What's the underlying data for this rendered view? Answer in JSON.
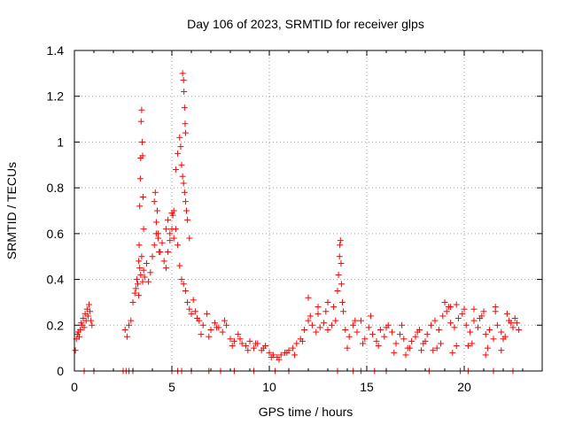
{
  "chart_data": {
    "type": "scatter",
    "title": "Day 106 of 2023, SRMTID for receiver glps",
    "xlabel": "GPS time / hours",
    "ylabel": "SRMTID / TECUs",
    "xlim": [
      0,
      24
    ],
    "ylim": [
      0,
      1.4
    ],
    "xticks": [
      0,
      5,
      10,
      15,
      20
    ],
    "xtick_labels": [
      "0",
      "5",
      "10",
      "15",
      "20"
    ],
    "yticks": [
      0,
      0.2,
      0.4,
      0.6,
      0.8,
      1.0,
      1.2,
      1.4
    ],
    "ytick_labels": [
      "0",
      "0.2",
      "0.4",
      "0.6",
      "0.8",
      "1",
      "1.2",
      "1.4"
    ],
    "grid": true,
    "marker": "+",
    "series": [
      {
        "name": "SRMTID",
        "color": "#ff0000",
        "x": [
          0.05,
          0.1,
          0.15,
          0.2,
          0.25,
          0.3,
          0.35,
          0.4,
          0.45,
          0.5,
          0.55,
          0.6,
          0.65,
          0.7,
          0.75,
          0.8,
          0.85,
          0.9,
          0.5,
          1.0,
          2.5,
          2.65,
          2.8,
          3.0,
          5.0,
          5.3,
          5.5,
          6.0,
          6.9,
          7.5,
          8.2,
          9.2,
          10.3,
          11.0,
          13.5,
          14.3,
          14.7,
          15.4,
          16.0,
          18.2,
          19.8,
          20.2,
          21.5,
          22.5,
          2.6,
          2.7,
          2.8,
          2.9,
          3.0,
          3.1,
          3.15,
          3.2,
          3.25,
          3.3,
          3.35,
          3.4,
          3.45,
          3.5,
          3.55,
          3.6,
          3.7,
          3.8,
          3.9,
          4.0,
          4.1,
          4.2,
          4.3,
          4.4,
          4.5,
          4.6,
          4.7,
          4.8,
          4.9,
          5.0,
          5.1,
          5.2,
          5.3,
          5.4,
          5.5,
          5.6,
          5.7,
          5.8,
          5.9,
          6.0,
          6.1,
          6.2,
          6.3,
          3.3,
          3.32,
          3.35,
          3.38,
          3.4,
          3.42,
          3.45,
          3.48,
          3.5,
          3.52,
          3.55,
          4.1,
          4.15,
          4.2,
          4.25,
          4.3,
          4.35,
          5.2,
          5.3,
          5.4,
          5.45,
          5.5,
          5.55,
          5.6,
          5.65,
          5.7,
          5.75,
          5.8,
          5.9,
          5.55,
          5.6,
          5.62,
          5.65,
          5.68,
          5.7,
          4.7,
          4.8,
          4.9,
          5.0,
          5.05,
          5.1,
          6.4,
          6.6,
          6.8,
          7.0,
          7.2,
          7.4,
          7.6,
          7.8,
          8.0,
          8.2,
          8.4,
          8.6,
          8.8,
          9.0,
          9.2,
          9.4,
          9.6,
          9.8,
          10.0,
          10.2,
          10.4,
          10.6,
          10.8,
          11.0,
          11.2,
          11.4,
          11.6,
          11.8,
          12.0,
          12.2,
          12.4,
          12.6,
          12.8,
          13.0,
          13.2,
          13.4,
          6.5,
          6.9,
          7.3,
          7.7,
          8.1,
          8.5,
          8.9,
          9.3,
          9.7,
          10.1,
          10.5,
          10.9,
          11.3,
          11.7,
          12.1,
          12.5,
          12.9,
          13.3,
          13.5,
          13.55,
          13.6,
          13.62,
          13.65,
          13.68,
          13.7,
          13.75,
          13.8,
          13.9,
          14.1,
          14.3,
          14.5,
          14.7,
          14.9,
          15.1,
          15.3,
          15.5,
          15.7,
          15.9,
          16.1,
          16.3,
          16.5,
          16.7,
          16.9,
          17.1,
          17.3,
          17.5,
          17.7,
          17.9,
          18.1,
          18.3,
          18.5,
          18.7,
          18.9,
          19.1,
          19.3,
          19.5,
          19.7,
          19.9,
          20.1,
          20.3,
          20.5,
          20.7,
          20.9,
          21.1,
          21.3,
          21.5,
          21.7,
          21.9,
          22.1,
          22.3,
          22.5,
          22.7,
          14.0,
          14.4,
          14.8,
          15.2,
          15.6,
          16.0,
          16.4,
          16.8,
          17.2,
          17.6,
          18.0,
          18.4,
          18.8,
          19.2,
          19.6,
          20.0,
          20.4,
          20.8,
          21.2,
          21.6,
          22.0,
          22.4,
          22.8,
          19.0,
          19.3,
          19.6,
          20.5,
          21.0,
          21.6,
          22.2,
          22.6,
          12.0,
          12.5,
          13.0,
          17.0,
          17.8,
          18.6,
          19.4,
          20.2,
          21.1,
          21.9
        ],
        "y": [
          0.09,
          0.14,
          0.16,
          0.17,
          0.15,
          0.18,
          0.21,
          0.2,
          0.23,
          0.19,
          0.25,
          0.22,
          0.27,
          0.24,
          0.29,
          0.26,
          0.22,
          0.2,
          0.0,
          0.0,
          0.0,
          0.0,
          0.0,
          0.0,
          0.0,
          0.0,
          0.0,
          0.0,
          0.0,
          0.0,
          0.0,
          0.0,
          0.0,
          0.0,
          0.0,
          0.0,
          0.0,
          0.0,
          0.0,
          0.0,
          0.0,
          0.0,
          0.0,
          0.0,
          0.18,
          0.15,
          0.2,
          0.22,
          0.3,
          0.34,
          0.36,
          0.4,
          0.38,
          0.33,
          0.45,
          0.42,
          0.5,
          0.39,
          0.44,
          0.41,
          0.47,
          0.39,
          0.43,
          0.5,
          0.55,
          0.6,
          0.58,
          0.52,
          0.56,
          0.48,
          0.62,
          0.66,
          0.6,
          0.69,
          0.58,
          0.62,
          0.55,
          0.46,
          0.4,
          0.38,
          0.35,
          0.3,
          0.27,
          0.25,
          0.31,
          0.26,
          0.23,
          0.48,
          0.55,
          0.72,
          0.84,
          0.93,
          1.09,
          1.14,
          1.0,
          0.94,
          0.76,
          0.62,
          0.74,
          0.78,
          0.65,
          0.7,
          0.6,
          0.52,
          0.88,
          0.95,
          1.02,
          0.98,
          0.9,
          0.85,
          0.82,
          0.78,
          0.74,
          0.7,
          0.66,
          0.58,
          1.3,
          1.27,
          1.22,
          1.15,
          1.08,
          1.04,
          0.45,
          0.52,
          0.57,
          0.62,
          0.68,
          0.7,
          0.22,
          0.2,
          0.25,
          0.18,
          0.21,
          0.19,
          0.17,
          0.2,
          0.14,
          0.13,
          0.16,
          0.12,
          0.11,
          0.13,
          0.1,
          0.12,
          0.09,
          0.11,
          0.08,
          0.07,
          0.06,
          0.07,
          0.08,
          0.09,
          0.1,
          0.12,
          0.14,
          0.18,
          0.22,
          0.2,
          0.17,
          0.19,
          0.21,
          0.18,
          0.2,
          0.22,
          0.16,
          0.15,
          0.19,
          0.22,
          0.11,
          0.14,
          0.09,
          0.12,
          0.1,
          0.06,
          0.05,
          0.08,
          0.07,
          0.13,
          0.24,
          0.25,
          0.26,
          0.28,
          0.35,
          0.42,
          0.5,
          0.55,
          0.57,
          0.47,
          0.38,
          0.3,
          0.26,
          0.18,
          0.15,
          0.2,
          0.17,
          0.22,
          0.14,
          0.19,
          0.16,
          0.13,
          0.18,
          0.15,
          0.2,
          0.17,
          0.12,
          0.16,
          0.14,
          0.1,
          0.13,
          0.15,
          0.18,
          0.12,
          0.16,
          0.2,
          0.22,
          0.18,
          0.24,
          0.26,
          0.21,
          0.19,
          0.23,
          0.25,
          0.2,
          0.17,
          0.22,
          0.19,
          0.24,
          0.16,
          0.18,
          0.14,
          0.2,
          0.17,
          0.15,
          0.22,
          0.19,
          0.21,
          0.1,
          0.22,
          0.12,
          0.24,
          0.11,
          0.19,
          0.08,
          0.2,
          0.1,
          0.17,
          0.13,
          0.09,
          0.12,
          0.28,
          0.11,
          0.27,
          0.12,
          0.23,
          0.1,
          0.26,
          0.14,
          0.21,
          0.18,
          0.3,
          0.28,
          0.29,
          0.27,
          0.26,
          0.28,
          0.25,
          0.23,
          0.32,
          0.28,
          0.3,
          0.07,
          0.09,
          0.1,
          0.08,
          0.11,
          0.07,
          0.09
        ]
      }
    ]
  }
}
